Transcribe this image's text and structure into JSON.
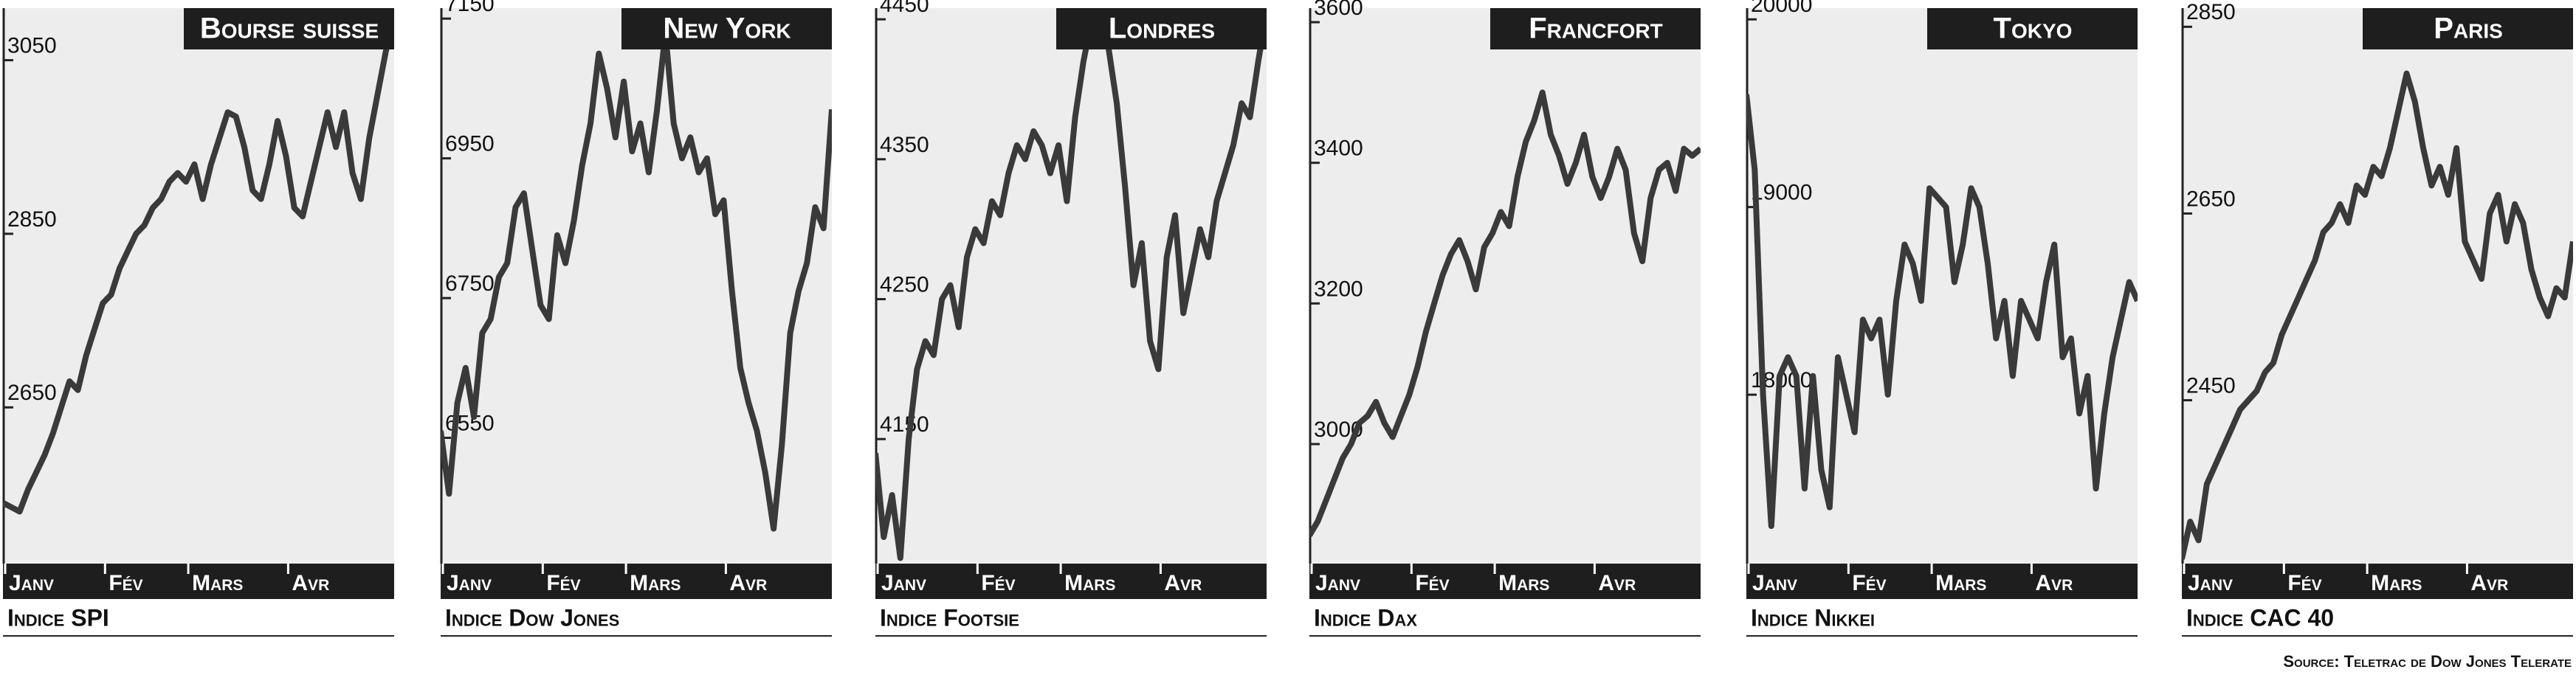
{
  "chart_data": [
    {
      "type": "line",
      "title": "Bourse suisse",
      "index_label": "Indice SPI",
      "color": "#3a3a3a",
      "xlim": [
        0,
        47
      ],
      "xticks": [
        {
          "value": 0,
          "label": "Janv"
        },
        {
          "value": 12,
          "label": "Fév"
        },
        {
          "value": 22,
          "label": "Mars"
        },
        {
          "value": 34,
          "label": "Avr"
        }
      ],
      "ylim": [
        2470,
        3110
      ],
      "yticks": [
        2650,
        2850,
        3050
      ],
      "values": [
        2540,
        2535,
        2530,
        2555,
        2575,
        2595,
        2620,
        2650,
        2680,
        2670,
        2710,
        2740,
        2770,
        2780,
        2810,
        2830,
        2850,
        2860,
        2880,
        2890,
        2910,
        2920,
        2910,
        2930,
        2890,
        2930,
        2960,
        2990,
        2985,
        2950,
        2900,
        2890,
        2930,
        2980,
        2940,
        2880,
        2870,
        2910,
        2950,
        2990,
        2950,
        2990,
        2920,
        2890,
        2960,
        3010,
        3060,
        3100
      ]
    },
    {
      "type": "line",
      "title": "New York",
      "index_label": "Indice Dow Jones",
      "color": "#3a3a3a",
      "xlim": [
        0,
        47
      ],
      "xticks": [
        {
          "value": 0,
          "label": "Janv"
        },
        {
          "value": 12,
          "label": "Fév"
        },
        {
          "value": 22,
          "label": "Mars"
        },
        {
          "value": 34,
          "label": "Avr"
        }
      ],
      "ylim": [
        6370,
        7165
      ],
      "yticks": [
        6550,
        6750,
        6950,
        7150
      ],
      "values": [
        6560,
        6470,
        6600,
        6650,
        6580,
        6700,
        6720,
        6780,
        6800,
        6880,
        6900,
        6820,
        6740,
        6720,
        6840,
        6800,
        6860,
        6940,
        7000,
        7100,
        7050,
        6980,
        7060,
        6960,
        7000,
        6930,
        7020,
        7130,
        7000,
        6950,
        6980,
        6930,
        6950,
        6870,
        6890,
        6760,
        6650,
        6600,
        6560,
        6500,
        6420,
        6540,
        6700,
        6760,
        6800,
        6880,
        6850,
        7020
      ]
    },
    {
      "type": "line",
      "title": "Londres",
      "index_label": "Indice Footsie",
      "color": "#3a3a3a",
      "xlim": [
        0,
        47
      ],
      "xticks": [
        {
          "value": 0,
          "label": "Janv"
        },
        {
          "value": 12,
          "label": "Fév"
        },
        {
          "value": 22,
          "label": "Mars"
        },
        {
          "value": 34,
          "label": "Avr"
        }
      ],
      "ylim": [
        4061,
        4458
      ],
      "yticks": [
        4150,
        4250,
        4350,
        4450
      ],
      "values": [
        4140,
        4080,
        4110,
        4065,
        4150,
        4200,
        4220,
        4210,
        4250,
        4260,
        4230,
        4280,
        4300,
        4290,
        4320,
        4310,
        4340,
        4360,
        4350,
        4370,
        4360,
        4340,
        4360,
        4320,
        4380,
        4420,
        4450,
        4455,
        4430,
        4390,
        4330,
        4260,
        4290,
        4220,
        4200,
        4280,
        4310,
        4240,
        4270,
        4300,
        4280,
        4320,
        4340,
        4360,
        4390,
        4380,
        4420,
        4455
      ]
    },
    {
      "type": "line",
      "title": "Francfort",
      "index_label": "Indice Dax",
      "color": "#3a3a3a",
      "xlim": [
        0,
        47
      ],
      "xticks": [
        {
          "value": 0,
          "label": "Janv"
        },
        {
          "value": 12,
          "label": "Fév"
        },
        {
          "value": 22,
          "label": "Mars"
        },
        {
          "value": 34,
          "label": "Avr"
        }
      ],
      "ylim": [
        2830,
        3620
      ],
      "yticks": [
        3000,
        3200,
        3400,
        3600
      ],
      "values": [
        2870,
        2890,
        2920,
        2950,
        2980,
        3000,
        3030,
        3040,
        3060,
        3030,
        3010,
        3040,
        3070,
        3110,
        3160,
        3200,
        3240,
        3270,
        3290,
        3260,
        3220,
        3280,
        3300,
        3330,
        3310,
        3380,
        3430,
        3460,
        3500,
        3440,
        3410,
        3370,
        3400,
        3440,
        3380,
        3350,
        3380,
        3420,
        3390,
        3300,
        3260,
        3350,
        3390,
        3400,
        3360,
        3420,
        3410,
        3420
      ]
    },
    {
      "type": "line",
      "title": "Tokyo",
      "index_label": "Indice Nikkei",
      "color": "#3a3a3a",
      "xlim": [
        0,
        47
      ],
      "xticks": [
        {
          "value": 0,
          "label": "Janv"
        },
        {
          "value": 12,
          "label": "Fév"
        },
        {
          "value": 22,
          "label": "Mars"
        },
        {
          "value": 34,
          "label": "Avr"
        }
      ],
      "ylim": [
        17100,
        20060
      ],
      "yticks": [
        18000,
        19000,
        20000
      ],
      "values": [
        19600,
        19200,
        18000,
        17300,
        18100,
        18200,
        18100,
        17500,
        18100,
        17600,
        17400,
        18200,
        18000,
        17800,
        18400,
        18300,
        18400,
        18000,
        18500,
        18800,
        18700,
        18500,
        19100,
        19050,
        19000,
        18600,
        18800,
        19100,
        19000,
        18700,
        18300,
        18500,
        18100,
        18500,
        18400,
        18300,
        18600,
        18800,
        18200,
        18300,
        17900,
        18100,
        17500,
        17900,
        18200,
        18400,
        18600,
        18500
      ]
    },
    {
      "type": "line",
      "title": "Paris",
      "index_label": "Indice CAC 40",
      "color": "#3a3a3a",
      "xlim": [
        0,
        47
      ],
      "xticks": [
        {
          "value": 0,
          "label": "Janv"
        },
        {
          "value": 12,
          "label": "Fév"
        },
        {
          "value": 22,
          "label": "Mars"
        },
        {
          "value": 34,
          "label": "Avr"
        }
      ],
      "ylim": [
        2275,
        2870
      ],
      "yticks": [
        2450,
        2650,
        2850
      ],
      "values": [
        2280,
        2320,
        2300,
        2360,
        2380,
        2400,
        2420,
        2440,
        2450,
        2460,
        2480,
        2490,
        2520,
        2540,
        2560,
        2580,
        2600,
        2630,
        2640,
        2660,
        2640,
        2680,
        2670,
        2700,
        2690,
        2720,
        2760,
        2800,
        2770,
        2720,
        2680,
        2700,
        2670,
        2720,
        2620,
        2600,
        2580,
        2650,
        2670,
        2620,
        2660,
        2640,
        2590,
        2560,
        2540,
        2570,
        2560,
        2620
      ]
    }
  ],
  "source": "Source: Teletrac de Dow Jones Telerate"
}
